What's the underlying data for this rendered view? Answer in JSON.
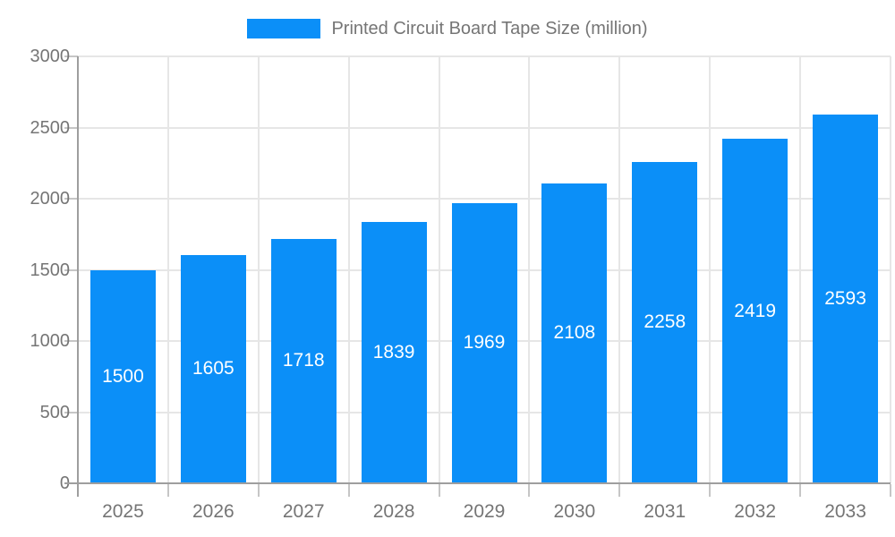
{
  "chart_data": {
    "type": "bar",
    "title": "Printed Circuit Board Tape Size (million)",
    "categories": [
      "2025",
      "2026",
      "2027",
      "2028",
      "2029",
      "2030",
      "2031",
      "2032",
      "2033"
    ],
    "values": [
      1500,
      1605,
      1718,
      1839,
      1969,
      2108,
      2258,
      2419,
      2593
    ],
    "ylim": [
      0,
      3000
    ],
    "ytick_step": 500,
    "ytick_labels": [
      "0",
      "500",
      "1000",
      "1500",
      "2000",
      "2500",
      "3000"
    ],
    "grid": true,
    "legend_position": "top-center",
    "value_labels_position": "inside-center",
    "colors": {
      "bar": "#0b8ff8",
      "axis_label": "#757575",
      "legend_label": "#757575",
      "grid_line": "#e6e6e6",
      "axis_line": "#9e9e9e",
      "tick": "#c6c6c6",
      "value_label": "#ffffff",
      "background": "#ffffff"
    }
  }
}
